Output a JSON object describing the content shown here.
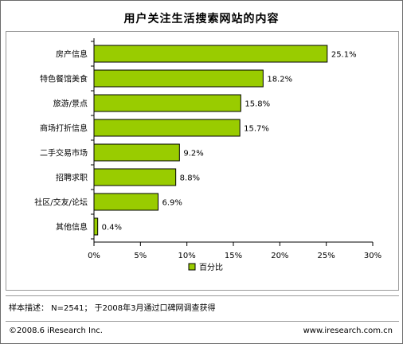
{
  "chart_data": {
    "type": "bar",
    "orientation": "horizontal",
    "title": "用户关注生活搜索网站的内容",
    "categories": [
      "房产信息",
      "特色餐馆美食",
      "旅游/景点",
      "商场打折信息",
      "二手交易市场",
      "招聘求职",
      "社区/交友/论坛",
      "其他信息"
    ],
    "series": [
      {
        "name": "百分比",
        "values": [
          25.1,
          18.2,
          15.8,
          15.7,
          9.2,
          8.8,
          6.9,
          0.4
        ],
        "labels": [
          "25.1%",
          "18.2%",
          "15.8%",
          "15.7%",
          "9.2%",
          "8.8%",
          "6.9%",
          "0.4%"
        ],
        "color": "#99cc00"
      }
    ],
    "xlim": [
      0,
      30
    ],
    "xticks": [
      0,
      5,
      10,
      15,
      20,
      25,
      30
    ],
    "xtick_labels": [
      "0%",
      "5%",
      "10%",
      "15%",
      "20%",
      "25%",
      "30%"
    ],
    "grid": false,
    "legend_position": "bottom-center",
    "bar_border_color": "#000000"
  },
  "notes": {
    "sample": "样本描述： N=2541； 于2008年3月通过口碑网调查获得"
  },
  "footer": {
    "copyright": "©2008.6 iResearch Inc.",
    "website": "www.iresearch.com.cn"
  }
}
